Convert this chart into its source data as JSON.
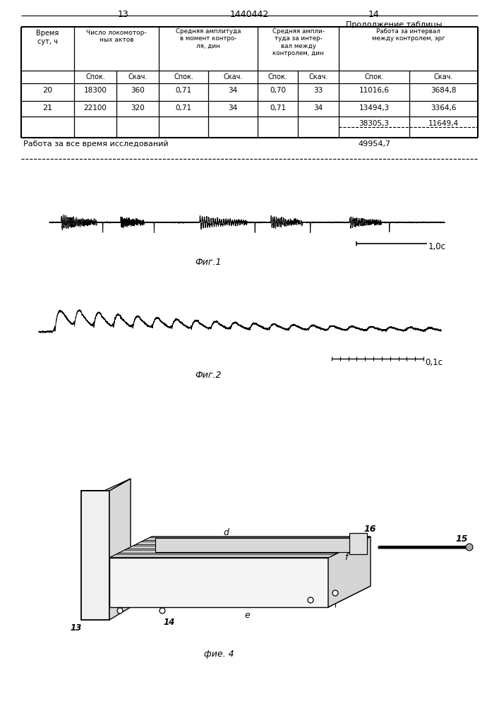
{
  "page_num_left": "13",
  "page_num_center": "1440442",
  "page_num_right": "14",
  "continuation_text": "Продолжение таблицы",
  "table": {
    "rows": [
      [
        "20",
        "18300",
        "360",
        "0,71",
        "34",
        "0,70",
        "33",
        "11016,6",
        "3684,8"
      ],
      [
        "21",
        "22100",
        "320",
        "0,71",
        "34",
        "0,71",
        "34",
        "13494,3",
        "3364,6"
      ]
    ],
    "subtotal": [
      "38305,3",
      "11649,4"
    ],
    "total_label": "Работа за все время исследований",
    "total_value": "49954,7"
  },
  "fig1_label": "Фиг.1",
  "fig1_scalebar_label": "1,0с",
  "fig2_label": "Фиг.2",
  "fig2_scalebar_label": "0,1с",
  "fig4_label": "фие. 4",
  "background_color": "#ffffff"
}
